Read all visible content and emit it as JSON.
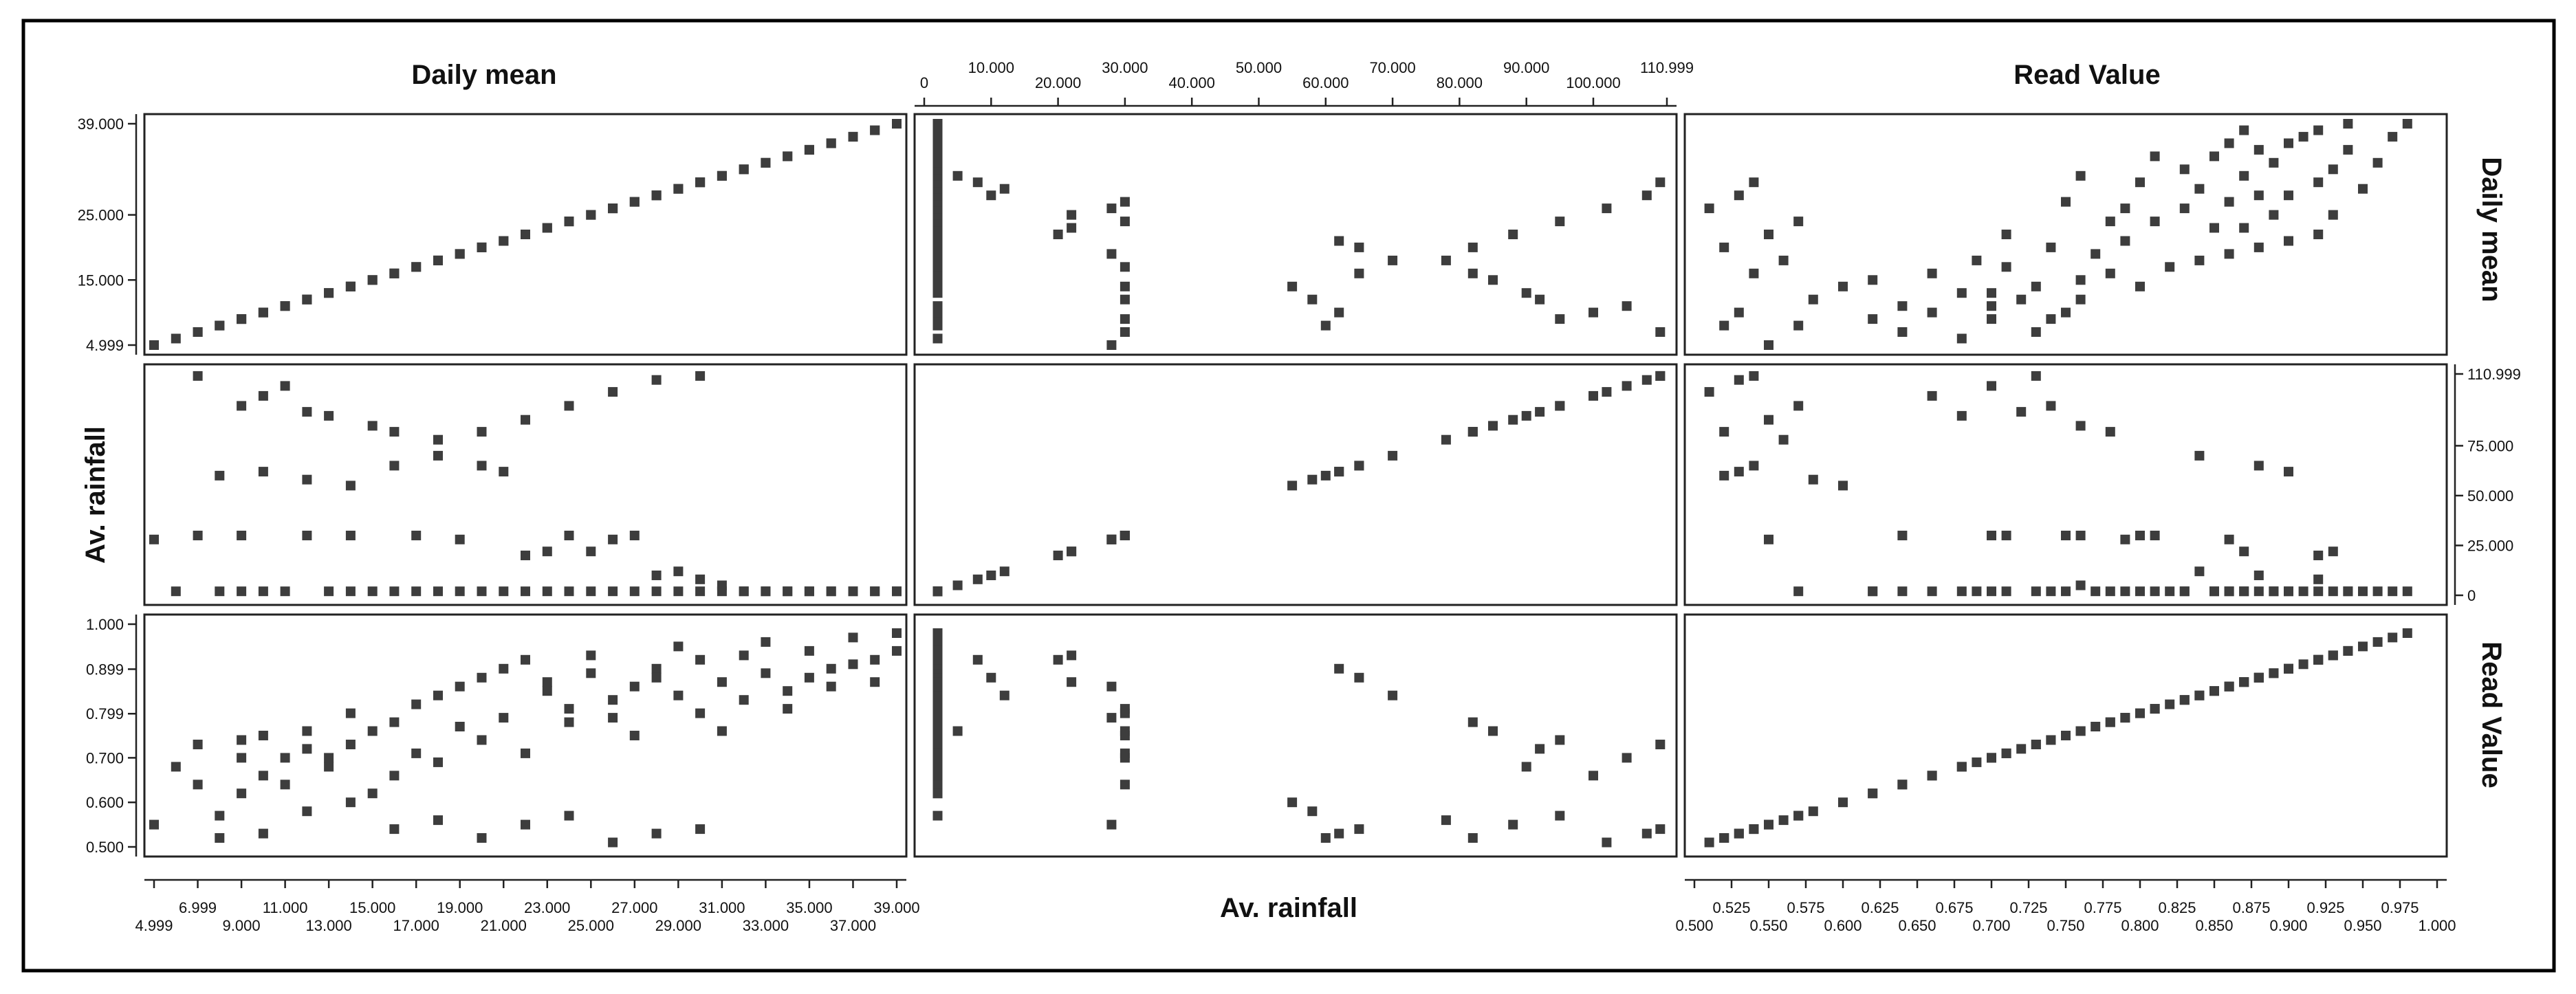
{
  "chart_data": {
    "type": "scatter",
    "subtype": "scatterplot-matrix",
    "variables": [
      {
        "key": "daily_mean",
        "label": "Daily mean",
        "range": [
          4.999,
          39.0
        ]
      },
      {
        "key": "rainfall",
        "label": "Av. rainfall",
        "range": [
          0,
          110.999
        ]
      },
      {
        "key": "read_value",
        "label": "Read Value",
        "range": [
          0.5,
          1.0
        ]
      }
    ],
    "axis_labels": {
      "top_left": "Daily mean",
      "top_middle": "",
      "top_right": "Read Value",
      "bottom_left": "",
      "bottom_middle": "Av. rainfall",
      "bottom_right": "",
      "left_middle": "Av. rainfall",
      "right_top": "Daily mean",
      "right_bottom": "Read Value"
    },
    "ticks": {
      "daily_mean_bottom_upper": [
        "6.999",
        "11.000",
        "15.000",
        "19.000",
        "23.000",
        "27.000",
        "31.000",
        "35.000",
        "39.000"
      ],
      "daily_mean_bottom_lower": [
        "4.999",
        "9.000",
        "13.000",
        "17.000",
        "21.000",
        "25.000",
        "29.000",
        "33.000",
        "37.000"
      ],
      "daily_mean_left": [
        "39.000",
        "25.000",
        "15.000",
        "4.999"
      ],
      "rainfall_top": [
        "0",
        "10.000",
        "20.000",
        "30.000",
        "40.000",
        "50.000",
        "60.000",
        "70.000",
        "80.000",
        "90.000",
        "100.000",
        "110.999"
      ],
      "rainfall_right": [
        "110.999",
        "75.000",
        "50.000",
        "25.000",
        "0"
      ],
      "read_left": [
        "1.000",
        "0.899",
        "0.799",
        "0.700",
        "0.600",
        "0.500"
      ],
      "read_bottom_upper": [
        "0.525",
        "0.575",
        "0.625",
        "0.675",
        "0.725",
        "0.775",
        "0.825",
        "0.875",
        "0.925",
        "0.975"
      ],
      "read_bottom_lower": [
        "0.500",
        "0.550",
        "0.600",
        "0.650",
        "0.700",
        "0.750",
        "0.800",
        "0.850",
        "0.900",
        "0.950",
        "1.000"
      ]
    },
    "grid": false,
    "legend": "none",
    "points": [
      [
        5,
        28,
        0.55
      ],
      [
        6,
        2,
        0.68
      ],
      [
        7,
        110,
        0.73
      ],
      [
        7,
        30,
        0.64
      ],
      [
        8,
        2,
        0.57
      ],
      [
        9,
        95,
        0.74
      ],
      [
        9,
        2,
        0.62
      ],
      [
        9,
        30,
        0.7
      ],
      [
        10,
        100,
        0.66
      ],
      [
        10,
        2,
        0.75
      ],
      [
        11,
        105,
        0.7
      ],
      [
        11,
        2,
        0.64
      ],
      [
        12,
        92,
        0.72
      ],
      [
        12,
        30,
        0.76
      ],
      [
        13,
        90,
        0.68
      ],
      [
        13,
        2,
        0.7
      ],
      [
        14,
        30,
        0.8
      ],
      [
        14,
        2,
        0.73
      ],
      [
        15,
        85,
        0.76
      ],
      [
        15,
        2,
        0.62
      ],
      [
        16,
        82,
        0.78
      ],
      [
        16,
        2,
        0.66
      ],
      [
        17,
        2,
        0.82
      ],
      [
        17,
        30,
        0.71
      ],
      [
        18,
        2,
        0.69
      ],
      [
        18,
        70,
        0.84
      ],
      [
        19,
        2,
        0.77
      ],
      [
        19,
        28,
        0.86
      ],
      [
        20,
        2,
        0.74
      ],
      [
        20,
        65,
        0.88
      ],
      [
        21,
        62,
        0.9
      ],
      [
        21,
        2,
        0.79
      ],
      [
        22,
        2,
        0.71
      ],
      [
        22,
        20,
        0.92
      ],
      [
        23,
        2,
        0.85
      ],
      [
        23,
        22,
        0.87
      ],
      [
        24,
        2,
        0.78
      ],
      [
        24,
        30,
        0.81
      ],
      [
        25,
        2,
        0.89
      ],
      [
        25,
        22,
        0.93
      ],
      [
        26,
        2,
        0.83
      ],
      [
        26,
        28,
        0.79
      ],
      [
        27,
        2,
        0.86
      ],
      [
        27,
        30,
        0.75
      ],
      [
        28,
        2,
        0.9
      ],
      [
        28,
        10,
        0.88
      ],
      [
        29,
        2,
        0.95
      ],
      [
        29,
        12,
        0.84
      ],
      [
        30,
        2,
        0.8
      ],
      [
        30,
        8,
        0.92
      ],
      [
        31,
        2,
        0.87
      ],
      [
        31,
        5,
        0.76
      ],
      [
        32,
        2,
        0.93
      ],
      [
        32,
        2,
        0.83
      ],
      [
        33,
        2,
        0.96
      ],
      [
        33,
        2,
        0.89
      ],
      [
        34,
        2,
        0.85
      ],
      [
        34,
        2,
        0.81
      ],
      [
        35,
        2,
        0.94
      ],
      [
        35,
        2,
        0.88
      ],
      [
        36,
        2,
        0.9
      ],
      [
        36,
        2,
        0.86
      ],
      [
        37,
        2,
        0.97
      ],
      [
        37,
        2,
        0.91
      ],
      [
        38,
        2,
        0.92
      ],
      [
        38,
        2,
        0.87
      ],
      [
        39,
        2,
        0.98
      ],
      [
        39,
        2,
        0.94
      ],
      [
        8,
        60,
        0.52
      ],
      [
        10,
        62,
        0.53
      ],
      [
        12,
        58,
        0.58
      ],
      [
        14,
        55,
        0.6
      ],
      [
        16,
        65,
        0.54
      ],
      [
        18,
        78,
        0.56
      ],
      [
        20,
        82,
        0.52
      ],
      [
        22,
        88,
        0.55
      ],
      [
        24,
        95,
        0.57
      ],
      [
        26,
        102,
        0.51
      ],
      [
        28,
        108,
        0.53
      ],
      [
        30,
        110,
        0.54
      ]
    ]
  }
}
